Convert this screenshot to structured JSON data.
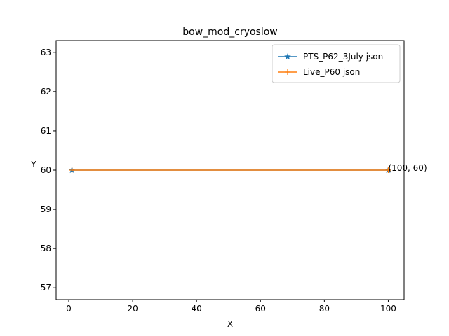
{
  "chart_data": {
    "type": "line",
    "title": "bow_mod_cryoslow",
    "xlabel": "X",
    "ylabel": "Y",
    "xlim": [
      -3.95,
      104.95
    ],
    "ylim": [
      56.7,
      63.3
    ],
    "xticks": [
      0,
      20,
      40,
      60,
      80,
      100
    ],
    "yticks": [
      57,
      58,
      59,
      60,
      61,
      62,
      63
    ],
    "grid": false,
    "legend_position": "top-right",
    "series": [
      {
        "name": "PTS_P62_3July json",
        "color": "#1f77b4",
        "marker": "star",
        "x": [
          1,
          100
        ],
        "y": [
          60,
          60
        ]
      },
      {
        "name": "Live_P60 json",
        "color": "#ff7f0e",
        "marker": "plus",
        "x": [
          1,
          100
        ],
        "y": [
          60,
          60
        ]
      }
    ],
    "annotations": [
      {
        "text": "(100, 60)",
        "x": 100,
        "y": 60
      }
    ]
  }
}
